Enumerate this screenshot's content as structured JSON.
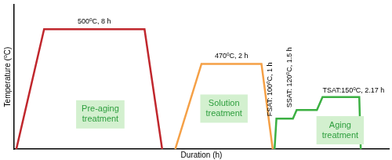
{
  "chart_data": {
    "type": "line",
    "x_label": "Duration (h)",
    "y_label": "Temperature (⁰C)",
    "xlim": [
      0,
      100
    ],
    "ylim": [
      0,
      100
    ],
    "tick_labels": false,
    "grid": false,
    "series": [
      {
        "name": "Pre-aging treatment",
        "color": "#c0272d",
        "x": [
          0.6,
          8,
          34.8,
          39.5
        ],
        "values": [
          0,
          83,
          83,
          0
        ],
        "annotations": [
          "500⁰C, 8 h"
        ]
      },
      {
        "name": "Solution treatment",
        "color": "#f5a046",
        "x": [
          43,
          50,
          66,
          69
        ],
        "values": [
          0,
          59,
          59,
          0
        ],
        "annotations": [
          "470⁰C, 2 h"
        ]
      },
      {
        "name": "Aging treatment",
        "color": "#3cb043",
        "x": [
          69.5,
          70,
          74.4,
          75.4,
          80.8,
          82.3,
          92.1,
          92.5
        ],
        "values": [
          0,
          21,
          21,
          27,
          27,
          36,
          36,
          0
        ],
        "annotations": [
          "FSAT: 100⁰C, 1 h",
          "SSAT: 120⁰C, 1.5 h",
          "TSAT:150⁰C, 2.17 h"
        ]
      }
    ]
  }
}
